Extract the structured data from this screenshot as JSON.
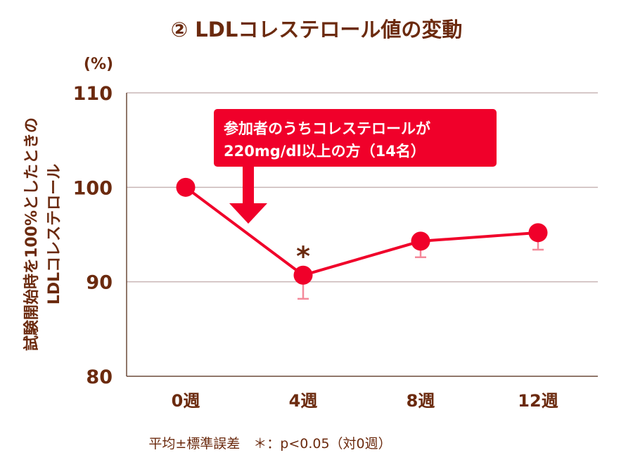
{
  "chart_data": {
    "type": "line",
    "title": "② LDLコレステロール値の変動",
    "ylabel_unit": "(%)",
    "ylabel": [
      "試験開始時を100%としたときの",
      "LDLコレステロール"
    ],
    "categories": [
      "0週",
      "4週",
      "8週",
      "12週"
    ],
    "ylim": [
      80,
      110
    ],
    "yticks": [
      "80",
      "90",
      "100",
      "110"
    ],
    "grid": true,
    "series": [
      {
        "values": [
          100,
          90.7,
          94.3,
          95.2
        ],
        "error_lower": [
          null,
          88.2,
          92.6,
          93.4
        ],
        "color": "#f0002a"
      }
    ],
    "significance_marks": [
      {
        "category": "4週",
        "text": "*"
      }
    ],
    "annotation": {
      "lines": [
        "参加者のうちコレステロールが",
        "220mg/dl以上の方（14名）"
      ],
      "target": "4週",
      "color": "#f0002a"
    },
    "footnote": "平均±標準誤差　＊：p<0.05（対0週）",
    "colors": {
      "text": "#6b2a0e",
      "line": "#f0002a",
      "error": "#f4899a",
      "grid": "#c9b5b5"
    }
  }
}
